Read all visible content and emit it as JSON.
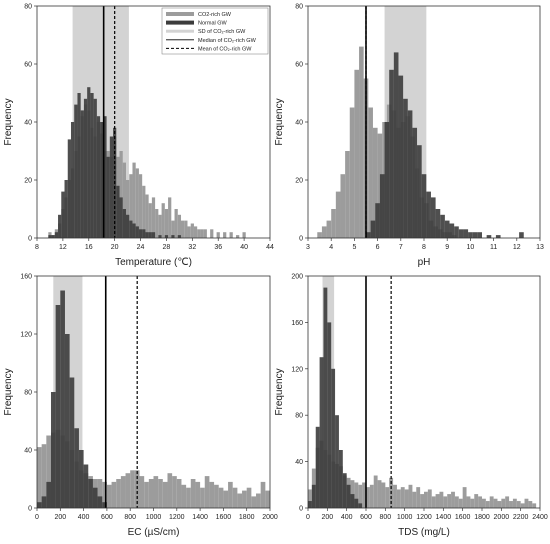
{
  "chart_data": [
    {
      "type": "bar",
      "panel": "top-left",
      "xlabel": "Temperature (℃)",
      "ylabel": "Frequency",
      "xlim": [
        8,
        44
      ],
      "ylim": [
        0,
        80
      ],
      "xticks": [
        8,
        12,
        16,
        20,
        24,
        28,
        32,
        36,
        40,
        44
      ],
      "yticks": [
        0,
        20,
        40,
        60,
        80
      ],
      "sd_band": [
        13.5,
        22.2
      ],
      "median": 18.3,
      "mean": 20.0,
      "series": [
        {
          "name": "CO2-rich GW",
          "x": [
            10,
            10.5,
            11,
            11.5,
            12,
            12.5,
            13,
            13.5,
            14,
            14.5,
            15,
            15.5,
            16,
            16.5,
            17,
            17.5,
            18,
            18.5,
            19,
            19.5,
            20,
            20.5,
            21,
            21.5,
            22,
            22.5,
            23,
            23.5,
            24,
            24.5,
            25,
            25.5,
            26,
            26.5,
            27,
            27.5,
            28,
            28.5,
            29,
            29.5,
            30,
            30.5,
            31,
            31.5,
            32,
            32.5,
            33,
            33.5,
            34,
            35,
            36,
            37,
            38,
            39,
            40
          ],
          "values": [
            2,
            1,
            3,
            5,
            10,
            14,
            20,
            24,
            30,
            35,
            42,
            46,
            44,
            38,
            35,
            40,
            36,
            30,
            30,
            28,
            35,
            28,
            30,
            26,
            20,
            22,
            26,
            24,
            22,
            18,
            15,
            12,
            14,
            10,
            8,
            12,
            10,
            14,
            6,
            10,
            8,
            6,
            6,
            4,
            5,
            4,
            3,
            3,
            3,
            3,
            2,
            2,
            2,
            1,
            2
          ]
        },
        {
          "name": "Normal GW",
          "x": [
            10,
            10.5,
            11,
            11.5,
            12,
            12.5,
            13,
            13.5,
            14,
            14.5,
            15,
            15.5,
            16,
            16.5,
            17,
            17.5,
            18,
            18.5,
            19,
            19.5,
            20,
            20.5,
            21,
            21.5,
            22,
            22.5,
            23,
            23.5,
            24,
            24.5,
            25,
            25.5,
            26,
            27,
            28,
            29,
            30
          ],
          "values": [
            1,
            1,
            2,
            8,
            16,
            20,
            34,
            40,
            46,
            50,
            44,
            48,
            52,
            50,
            48,
            42,
            40,
            42,
            28,
            35,
            38,
            18,
            14,
            10,
            8,
            6,
            5,
            4,
            3,
            3,
            2,
            2,
            2,
            1,
            1,
            1,
            1
          ]
        }
      ],
      "legend": {
        "position": "top-right",
        "entries": [
          "CO2-rich GW",
          "Normal GW",
          "SD of CO₂-rich GW",
          "Median of CO₂-rich GW",
          "Mean of CO₂-rich GW"
        ]
      }
    },
    {
      "type": "bar",
      "panel": "top-right",
      "xlabel": "pH",
      "ylabel": "Frequency",
      "xlim": [
        3,
        13
      ],
      "ylim": [
        0,
        80
      ],
      "xticks": [
        3,
        4,
        5,
        6,
        7,
        8,
        9,
        10,
        11,
        12,
        13
      ],
      "yticks": [
        0,
        20,
        40,
        60,
        80
      ],
      "sd_band": [
        6.3,
        8.1
      ],
      "median": 5.5,
      "mean": 5.5,
      "series": [
        {
          "name": "CO2-rich GW",
          "x": [
            3.5,
            3.7,
            3.9,
            4.1,
            4.3,
            4.5,
            4.7,
            4.9,
            5.1,
            5.3,
            5.5,
            5.7,
            5.9,
            6.1,
            6.3,
            6.5,
            6.7,
            6.9,
            7.1,
            7.3,
            7.5,
            7.7,
            7.9,
            8.1,
            8.3,
            8.5,
            8.7,
            8.9,
            9.1,
            9.3
          ],
          "values": [
            2,
            4,
            6,
            10,
            16,
            22,
            30,
            45,
            58,
            66,
            55,
            45,
            38,
            36,
            40,
            46,
            44,
            38,
            40,
            42,
            35,
            24,
            14,
            12,
            6,
            4,
            3,
            2,
            2,
            1
          ]
        },
        {
          "name": "Normal GW",
          "x": [
            5.6,
            5.8,
            6.0,
            6.2,
            6.4,
            6.6,
            6.8,
            7.0,
            7.2,
            7.4,
            7.6,
            7.8,
            8.0,
            8.2,
            8.4,
            8.6,
            8.8,
            9.0,
            9.2,
            9.4,
            9.6,
            9.8,
            10.0,
            10.2,
            10.4,
            10.8,
            11.2,
            12.2
          ],
          "values": [
            2,
            6,
            12,
            22,
            40,
            58,
            64,
            56,
            48,
            44,
            38,
            32,
            22,
            16,
            14,
            10,
            8,
            6,
            5,
            4,
            3,
            3,
            2,
            2,
            2,
            1,
            1,
            2
          ]
        }
      ]
    },
    {
      "type": "bar",
      "panel": "bottom-left",
      "xlabel": "EC (µS/cm)",
      "ylabel": "Frequency",
      "xlim": [
        0,
        2000
      ],
      "ylim": [
        0,
        160
      ],
      "xticks": [
        0,
        200,
        400,
        600,
        800,
        1000,
        1200,
        1400,
        1600,
        1800,
        2000
      ],
      "yticks": [
        0,
        40,
        80,
        120,
        160
      ],
      "sd_band": [
        140,
        390
      ],
      "median": 590,
      "mean": 860,
      "series": [
        {
          "name": "CO2-rich GW",
          "x": [
            20,
            60,
            100,
            140,
            180,
            220,
            260,
            300,
            340,
            380,
            420,
            460,
            500,
            540,
            580,
            620,
            660,
            700,
            740,
            780,
            820,
            860,
            900,
            940,
            980,
            1020,
            1060,
            1100,
            1140,
            1180,
            1220,
            1260,
            1300,
            1340,
            1380,
            1420,
            1460,
            1500,
            1540,
            1580,
            1620,
            1660,
            1700,
            1740,
            1780,
            1820,
            1860,
            1900,
            1940,
            1980
          ],
          "values": [
            42,
            44,
            50,
            52,
            54,
            50,
            46,
            40,
            32,
            26,
            24,
            22,
            20,
            20,
            18,
            16,
            18,
            20,
            22,
            24,
            26,
            26,
            22,
            18,
            20,
            22,
            20,
            18,
            24,
            22,
            20,
            16,
            14,
            20,
            18,
            14,
            22,
            18,
            16,
            14,
            12,
            18,
            14,
            10,
            12,
            14,
            8,
            10,
            18,
            12
          ]
        },
        {
          "name": "Normal GW",
          "x": [
            20,
            60,
            100,
            140,
            180,
            220,
            260,
            300,
            340,
            380,
            420,
            460,
            500,
            540,
            580
          ],
          "values": [
            4,
            8,
            18,
            80,
            140,
            150,
            120,
            90,
            55,
            40,
            30,
            20,
            14,
            8,
            4
          ]
        }
      ]
    },
    {
      "type": "bar",
      "panel": "bottom-right",
      "xlabel": "TDS (mg/L)",
      "ylabel": "Frequency",
      "xlim": [
        0,
        2400
      ],
      "ylim": [
        0,
        200
      ],
      "xticks": [
        0,
        200,
        400,
        600,
        800,
        1000,
        1200,
        1400,
        1600,
        1800,
        2000,
        2200,
        2400
      ],
      "yticks": [
        0,
        40,
        80,
        120,
        160,
        200
      ],
      "sd_band": [
        150,
        270
      ],
      "median": 600,
      "mean": 860,
      "series": [
        {
          "name": "CO2-rich GW",
          "x": [
            20,
            60,
            100,
            140,
            180,
            220,
            260,
            300,
            340,
            380,
            420,
            460,
            500,
            540,
            580,
            620,
            660,
            700,
            740,
            780,
            820,
            860,
            900,
            940,
            980,
            1020,
            1060,
            1100,
            1140,
            1180,
            1220,
            1260,
            1300,
            1340,
            1380,
            1420,
            1460,
            1500,
            1540,
            1580,
            1620,
            1660,
            1700,
            1740,
            1780,
            1820,
            1860,
            1900,
            1940,
            1980,
            2020,
            2060,
            2100,
            2140,
            2180,
            2220,
            2260,
            2300,
            2340
          ],
          "values": [
            16,
            34,
            52,
            58,
            50,
            46,
            40,
            38,
            36,
            28,
            26,
            24,
            22,
            20,
            22,
            18,
            20,
            28,
            24,
            22,
            18,
            26,
            20,
            16,
            18,
            16,
            20,
            14,
            18,
            12,
            14,
            16,
            10,
            12,
            14,
            10,
            12,
            14,
            10,
            8,
            18,
            10,
            8,
            12,
            10,
            8,
            6,
            10,
            8,
            6,
            8,
            10,
            6,
            8,
            6,
            4,
            8,
            6,
            4
          ]
        },
        {
          "name": "Normal GW",
          "x": [
            20,
            60,
            100,
            140,
            180,
            220,
            260,
            300,
            340,
            380,
            420,
            460,
            500,
            540
          ],
          "values": [
            6,
            20,
            70,
            130,
            190,
            160,
            120,
            80,
            50,
            30,
            20,
            12,
            8,
            4
          ]
        }
      ]
    }
  ],
  "colors": {
    "co2_bar": "#9c9c9c",
    "normal_bar": "#3c3c3c",
    "sd_band": "#d3d3d3",
    "median_line": "#000000",
    "mean_line": "#000000"
  }
}
